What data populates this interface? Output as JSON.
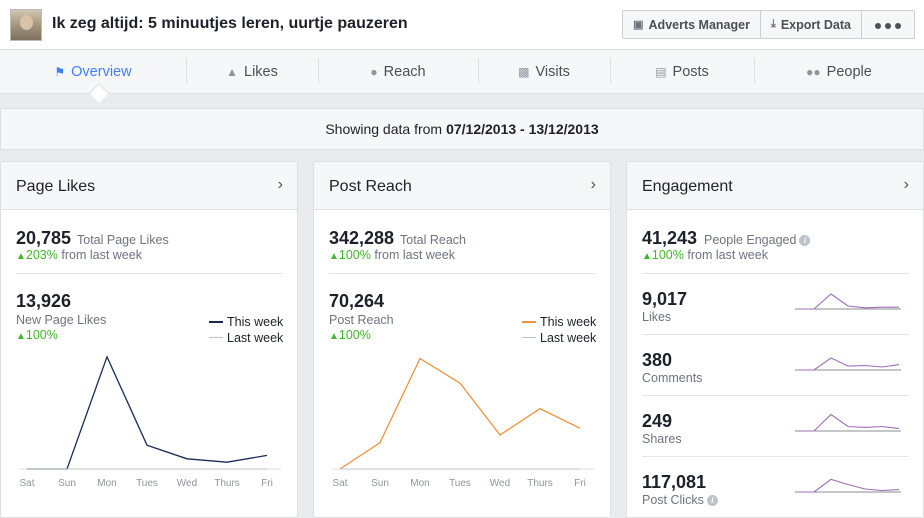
{
  "header": {
    "page_title": "Ik zeg altijd: 5 minuutjes leren, uurtje pauzeren",
    "buttons": {
      "adverts_manager": "Adverts Manager",
      "export_data": "Export Data"
    }
  },
  "tabs": [
    {
      "label": "Overview",
      "active": true,
      "icon": "flag-icon"
    },
    {
      "label": "Likes",
      "icon": "thumbs-up-icon"
    },
    {
      "label": "Reach",
      "icon": "person-icon"
    },
    {
      "label": "Visits",
      "icon": "bar-chart-icon"
    },
    {
      "label": "Posts",
      "icon": "posts-icon"
    },
    {
      "label": "People",
      "icon": "people-icon"
    }
  ],
  "date_range": {
    "prefix": "Showing data from",
    "range": "07/12/2013 - 13/12/2013"
  },
  "colors": {
    "accent": "#4080ff",
    "positive": "#42b72a",
    "likes_line": "#1a2c54",
    "reach_line": "#f0923a",
    "engagement_line": "#a06cb4",
    "last_week": "#bec3c9"
  },
  "page_likes": {
    "title": "Page Likes",
    "total_value": "20,785",
    "total_label": "Total Page Likes",
    "total_change": "203%",
    "total_change_suffix": "from last week",
    "new_value": "13,926",
    "new_label": "New Page Likes",
    "new_change": "100%",
    "legend_this": "This week",
    "legend_last": "Last week"
  },
  "post_reach": {
    "title": "Post Reach",
    "total_value": "342,288",
    "total_label": "Total Reach",
    "total_change": "100%",
    "total_change_suffix": "from last week",
    "new_value": "70,264",
    "new_label": "Post Reach",
    "new_change": "100%",
    "legend_this": "This week",
    "legend_last": "Last week"
  },
  "engagement": {
    "title": "Engagement",
    "total_value": "41,243",
    "total_label": "People Engaged",
    "total_change": "100%",
    "total_change_suffix": "from last week",
    "metrics": [
      {
        "value": "9,017",
        "label": "Likes",
        "spark": [
          0,
          0,
          5,
          1,
          0.4,
          0.6,
          0.6
        ]
      },
      {
        "value": "380",
        "label": "Comments",
        "spark": [
          0,
          0,
          4,
          1.3,
          1.5,
          1,
          1.8
        ]
      },
      {
        "value": "249",
        "label": "Shares",
        "spark": [
          0,
          0,
          5.5,
          1.5,
          1.2,
          1.5,
          0.8
        ]
      },
      {
        "value": "117,081",
        "label": "Post Clicks",
        "spark": [
          0,
          0,
          4.2,
          2.5,
          1,
          0.5,
          0.8
        ]
      }
    ]
  },
  "chart_data": [
    {
      "type": "line",
      "categories": [
        "Sat",
        "Sun",
        "Mon",
        "Tues",
        "Wed",
        "Thurs",
        "Fri"
      ],
      "series": [
        {
          "name": "This week",
          "values": [
            0,
            0,
            13200,
            2800,
            1200,
            800,
            1600
          ]
        },
        {
          "name": "Last week",
          "values": [
            0,
            0,
            0,
            0,
            0,
            0,
            0
          ]
        }
      ]
    },
    {
      "type": "line",
      "categories": [
        "Sat",
        "Sun",
        "Mon",
        "Tues",
        "Wed",
        "Thurs",
        "Fri"
      ],
      "series": [
        {
          "name": "This week",
          "values": [
            0,
            3100,
            13000,
            10100,
            4000,
            7100,
            4800
          ]
        },
        {
          "name": "Last week",
          "values": [
            0,
            0,
            0,
            0,
            0,
            0,
            0
          ]
        }
      ]
    }
  ]
}
